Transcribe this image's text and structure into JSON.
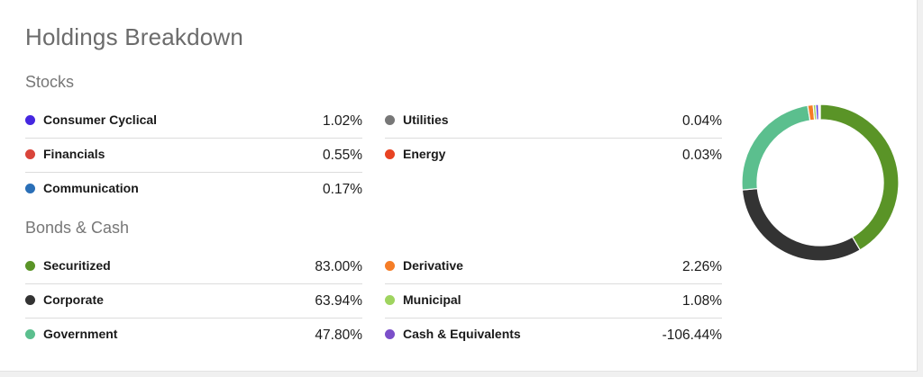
{
  "title": "Holdings Breakdown",
  "stocks": {
    "heading": "Stocks",
    "left": [
      {
        "label": "Consumer Cyclical",
        "value": "1.02%",
        "color": "#4527e0"
      },
      {
        "label": "Financials",
        "value": "0.55%",
        "color": "#d9443a"
      },
      {
        "label": "Communication",
        "value": "0.17%",
        "color": "#2a6fb7"
      }
    ],
    "right": [
      {
        "label": "Utilities",
        "value": "0.04%",
        "color": "#777777"
      },
      {
        "label": "Energy",
        "value": "0.03%",
        "color": "#e84322"
      }
    ]
  },
  "bonds": {
    "heading": "Bonds & Cash",
    "left": [
      {
        "label": "Securitized",
        "value": "83.00%",
        "color": "#5a9427"
      },
      {
        "label": "Corporate",
        "value": "63.94%",
        "color": "#333333"
      },
      {
        "label": "Government",
        "value": "47.80%",
        "color": "#5bbf8e"
      }
    ],
    "right": [
      {
        "label": "Derivative",
        "value": "2.26%",
        "color": "#f57d27"
      },
      {
        "label": "Municipal",
        "value": "1.08%",
        "color": "#9fd45f"
      },
      {
        "label": "Cash & Equivalents",
        "value": "-106.44%",
        "color": "#7b4fc9"
      }
    ]
  },
  "chart_data": {
    "type": "pie",
    "categories": [
      "Securitized",
      "Corporate",
      "Government",
      "Derivative",
      "Municipal",
      "Consumer Cyclical",
      "Financials",
      "Communication",
      "Utilities",
      "Energy"
    ],
    "values": [
      83.0,
      63.94,
      47.8,
      2.26,
      1.08,
      1.02,
      0.55,
      0.17,
      0.04,
      0.03
    ],
    "colors": [
      "#5a9427",
      "#333333",
      "#5bbf8e",
      "#f57d27",
      "#9fd45f",
      "#4527e0",
      "#d9443a",
      "#2a6fb7",
      "#777777",
      "#e84322"
    ],
    "style": "donut"
  }
}
